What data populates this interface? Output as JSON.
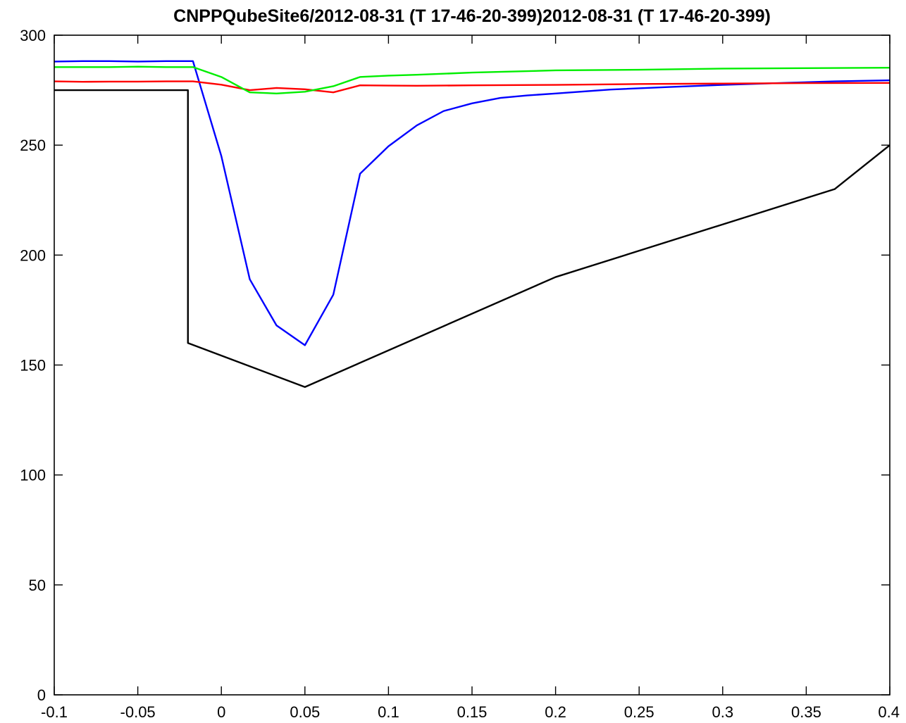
{
  "chart_data": {
    "type": "line",
    "title": "CNPPQubeSite6/2012-08-31 (T 17-46-20-399)2012-08-31 (T 17-46-20-399)",
    "xlabel": "",
    "ylabel": "",
    "xlim": [
      -0.1,
      0.4
    ],
    "ylim": [
      0,
      300
    ],
    "xticks": [
      -0.1,
      -0.05,
      0,
      0.05,
      0.1,
      0.15,
      0.2,
      0.25,
      0.3,
      0.35,
      0.4
    ],
    "xtick_labels": [
      "-0.1",
      "-0.05",
      "0",
      "0.05",
      "0.1",
      "0.15",
      "0.2",
      "0.25",
      "0.3",
      "0.35",
      "0.4"
    ],
    "yticks": [
      0,
      50,
      100,
      150,
      200,
      250,
      300
    ],
    "ytick_labels": [
      "0",
      "50",
      "100",
      "150",
      "200",
      "250",
      "300"
    ],
    "grid": false,
    "legend": "none",
    "series": [
      {
        "color": "#000000",
        "x": [
          -0.1,
          -0.02,
          -0.02,
          0.05,
          0.2,
          0.367,
          0.4
        ],
        "y": [
          275,
          275,
          160,
          140,
          190,
          230,
          250
        ]
      },
      {
        "color": "#0000ff",
        "x": [
          -0.1,
          -0.083,
          -0.067,
          -0.05,
          -0.033,
          -0.017,
          0,
          0.017,
          0.033,
          0.05,
          0.067,
          0.083,
          0.1,
          0.117,
          0.133,
          0.15,
          0.167,
          0.183,
          0.2,
          0.233,
          0.267,
          0.3,
          0.333,
          0.367,
          0.4
        ],
        "y": [
          288,
          288.2,
          288.2,
          288,
          288.2,
          288.2,
          245,
          189,
          168,
          159,
          182,
          237,
          249.5,
          259,
          265.5,
          269,
          271.5,
          272.6,
          273.5,
          275.3,
          276.4,
          277.4,
          278.2,
          279,
          279.5
        ]
      },
      {
        "color": "#ff0000",
        "x": [
          -0.1,
          -0.083,
          -0.067,
          -0.05,
          -0.033,
          -0.017,
          0,
          0.017,
          0.033,
          0.05,
          0.067,
          0.083,
          0.1,
          0.117,
          0.15,
          0.2,
          0.25,
          0.3,
          0.35,
          0.4
        ],
        "y": [
          279,
          278.8,
          278.9,
          278.9,
          279,
          279,
          277.5,
          275,
          276,
          275.4,
          274,
          277.2,
          277.1,
          277,
          277.2,
          277.4,
          277.8,
          278,
          278.2,
          278.3
        ]
      },
      {
        "color": "#00ee00",
        "x": [
          -0.1,
          -0.083,
          -0.067,
          -0.05,
          -0.033,
          -0.017,
          0,
          0.017,
          0.033,
          0.05,
          0.067,
          0.083,
          0.1,
          0.117,
          0.15,
          0.2,
          0.25,
          0.3,
          0.35,
          0.4
        ],
        "y": [
          285.5,
          285.5,
          285.5,
          285.7,
          285.5,
          285.5,
          281,
          274,
          273.5,
          274.3,
          276.8,
          281,
          281.6,
          282,
          283,
          284,
          284.3,
          284.8,
          285,
          285.2
        ]
      }
    ]
  }
}
